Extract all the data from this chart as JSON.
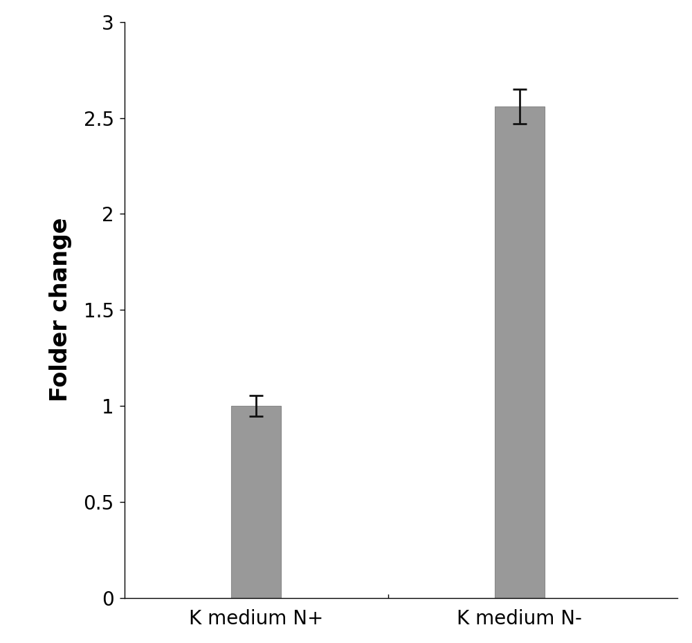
{
  "categories": [
    "K medium N+",
    "K medium N-"
  ],
  "values": [
    1.0,
    2.56
  ],
  "errors": [
    0.055,
    0.09
  ],
  "bar_color": "#999999",
  "bar_edgecolor": "#888888",
  "ylabel": "Folder change",
  "ylim": [
    0,
    3.0
  ],
  "ytick_values": [
    0,
    0.5,
    1.0,
    1.5,
    2.0,
    2.5,
    3.0
  ],
  "ytick_labels": [
    "0",
    "0.5",
    "1",
    "1.5",
    "2",
    "2.5",
    "3"
  ],
  "bar_width": 0.38,
  "background_color": "#ffffff",
  "ylabel_fontsize": 24,
  "tick_fontsize": 20,
  "xlabel_fontsize": 20,
  "error_capsize": 7,
  "error_linewidth": 2.0,
  "error_color": "#111111",
  "x_positions": [
    1,
    3
  ],
  "xlim": [
    0,
    4.2
  ]
}
